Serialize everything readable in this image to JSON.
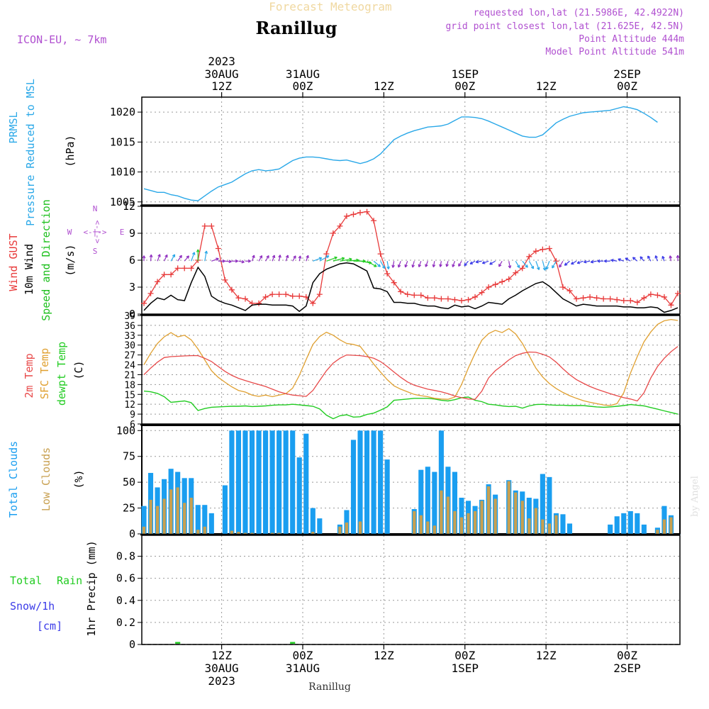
{
  "header": {
    "supertitle": "Forecast Meteogram",
    "location": "Ranillug",
    "model": "ICON-EU, ~ 7km",
    "requested": "requested lon,lat (21.5986E, 42.4922N)",
    "gridpoint": "grid point closest lon,lat (21.625E, 42.5N)",
    "point_alt": "Point Altitude 444m",
    "model_alt": "Model Point Altitude 541m",
    "footer": "Ranillug",
    "credit": "by Angel"
  },
  "colors": {
    "pressure": "#2aa8e8",
    "gust": "#e83a3a",
    "wind": "#000000",
    "wind_label": "#1ec01e",
    "temp": "#e84a4a",
    "sfc": "#e0a030",
    "dewpt": "#22cc22",
    "total_cloud": "#1a9ef0",
    "low_cloud": "#c8a050",
    "precip_rain": "#22cc22",
    "precip_snow": "#3a3ae8",
    "compass": "#b050d0"
  },
  "time_axis": {
    "top_ticks": [
      {
        "line1": "2023",
        "line2": "30AUG",
        "line3": "12Z"
      },
      {
        "line1": "",
        "line2": "31AUG",
        "line3": "00Z"
      },
      {
        "line1": "",
        "line2": "",
        "line3": "12Z"
      },
      {
        "line1": "",
        "line2": "1SEP",
        "line3": "00Z"
      },
      {
        "line1": "",
        "line2": "",
        "line3": "12Z"
      },
      {
        "line1": "",
        "line2": "2SEP",
        "line3": "00Z"
      }
    ],
    "bottom_ticks": [
      {
        "line1": "12Z",
        "line2": "30AUG",
        "line3": "2023"
      },
      {
        "line1": "00Z",
        "line2": "31AUG",
        "line3": ""
      },
      {
        "line1": "12Z",
        "line2": "",
        "line3": ""
      },
      {
        "line1": "00Z",
        "line2": "1SEP",
        "line3": ""
      },
      {
        "line1": "12Z",
        "line2": "",
        "line3": ""
      },
      {
        "line1": "00Z",
        "line2": "2SEP",
        "line3": ""
      }
    ]
  },
  "panel_labels": {
    "pressure": {
      "a": "PRMSL",
      "b": "Pressure Reduced to MSL",
      "unit": "(hPa)"
    },
    "wind": {
      "a": "Wind GUST",
      "b": "10m Wind",
      "c": "Speed and Direction",
      "unit": "(m/s)"
    },
    "compass": {
      "n": "N",
      "s": "S",
      "w": "W",
      "e": "E",
      "ns": "<-|->",
      "we": "<-|->"
    },
    "temp": {
      "a": "2m Temp",
      "b": "SFC Temp",
      "c": "dewpt Temp",
      "unit": "(C)"
    },
    "cloud": {
      "a": "Total Clouds",
      "b": "Low Clouds",
      "unit": "(%)"
    },
    "precip": {
      "a": "Total",
      "b": "Rain",
      "c": "Snow/1h",
      "d": "[cm]",
      "unit": "1hr Precip (mm)"
    }
  },
  "chart_data": [
    {
      "type": "line",
      "id": "pressure",
      "ylabel": "(hPa)",
      "ylim": [
        1004.5,
        1022.5
      ],
      "yticks": [
        1005,
        1010,
        1015,
        1020
      ],
      "grid": true,
      "x_start": "2023-08-30 00Z",
      "x_step_hours": 1,
      "series": [
        {
          "name": "PRMSL",
          "values": [
            1007.2,
            1006.9,
            1006.6,
            1006.6,
            1006.2,
            1006.0,
            1005.6,
            1005.3,
            1005.2,
            1006.0,
            1006.8,
            1007.5,
            1007.9,
            1008.3,
            1009.0,
            1009.7,
            1010.2,
            1010.4,
            1010.2,
            1010.3,
            1010.5,
            1011.2,
            1011.9,
            1012.3,
            1012.5,
            1012.5,
            1012.4,
            1012.2,
            1012.0,
            1011.9,
            1012.0,
            1011.7,
            1011.4,
            1011.7,
            1012.2,
            1013.0,
            1014.2,
            1015.4,
            1016.0,
            1016.5,
            1016.9,
            1017.2,
            1017.5,
            1017.6,
            1017.7,
            1018.0,
            1018.6,
            1019.2,
            1019.2,
            1019.1,
            1018.9,
            1018.5,
            1018.0,
            1017.5,
            1017.0,
            1016.5,
            1016.0,
            1015.8,
            1015.8,
            1016.2,
            1017.2,
            1018.2,
            1018.8,
            1019.3,
            1019.6,
            1019.9,
            1020.0,
            1020.1,
            1020.2,
            1020.3,
            1020.6,
            1020.9,
            1020.7,
            1020.4,
            1019.8,
            1019.1,
            1018.3
          ]
        }
      ]
    },
    {
      "type": "line",
      "id": "wind",
      "ylabel": "(m/s)",
      "ylim": [
        0,
        12
      ],
      "yticks": [
        0,
        3,
        6,
        9,
        12
      ],
      "grid": true,
      "x_start": "2023-08-30 00Z",
      "x_step_hours": 1,
      "series": [
        {
          "name": "Wind GUST",
          "values": [
            1.2,
            2.3,
            3.6,
            4.4,
            4.4,
            5.1,
            5.1,
            5.1,
            6.0,
            9.8,
            9.8,
            7.3,
            3.8,
            2.7,
            1.8,
            1.7,
            1.2,
            1.2,
            1.9,
            2.2,
            2.2,
            2.2,
            2.0,
            2.0,
            1.9,
            1.2,
            2.2,
            6.7,
            9.0,
            9.8,
            10.9,
            11.1,
            11.3,
            11.4,
            10.4,
            6.7,
            4.5,
            3.5,
            2.5,
            2.2,
            2.1,
            2.1,
            1.8,
            1.8,
            1.7,
            1.7,
            1.6,
            1.5,
            1.6,
            1.9,
            2.4,
            3.0,
            3.3,
            3.6,
            3.9,
            4.6,
            5.1,
            6.4,
            7.0,
            7.2,
            7.3,
            5.9,
            3.0,
            2.6,
            1.7,
            1.8,
            1.9,
            1.8,
            1.7,
            1.7,
            1.6,
            1.5,
            1.5,
            1.3,
            1.8,
            2.2,
            2.1,
            1.9,
            1.0,
            2.3
          ]
        },
        {
          "name": "10m Wind",
          "values": [
            0.4,
            1.2,
            1.8,
            1.6,
            2.1,
            1.6,
            1.5,
            3.5,
            5.2,
            4.2,
            2.0,
            1.5,
            1.2,
            1.0,
            0.7,
            0.4,
            1.0,
            1.1,
            1.1,
            1.0,
            1.0,
            1.0,
            0.9,
            0.3,
            0.9,
            3.5,
            4.5,
            5.0,
            5.3,
            5.6,
            5.7,
            5.6,
            5.2,
            4.8,
            2.9,
            2.8,
            2.5,
            1.3,
            1.3,
            1.2,
            1.2,
            1.0,
            0.9,
            0.9,
            0.7,
            0.6,
            1.0,
            0.8,
            0.9,
            0.6,
            0.9,
            1.3,
            1.2,
            1.1,
            1.7,
            2.1,
            2.6,
            3.0,
            3.4,
            3.6,
            3.1,
            2.4,
            1.7,
            1.3,
            0.9,
            1.1,
            1.0,
            0.9,
            0.9,
            0.9,
            0.9,
            0.8,
            0.8,
            0.7,
            0.7,
            0.8,
            0.7,
            0.2,
            0.4,
            0.7
          ]
        }
      ]
    },
    {
      "type": "line",
      "id": "temperature",
      "ylabel": "(C)",
      "ylim": [
        6,
        39
      ],
      "yticks": [
        6,
        9,
        12,
        15,
        18,
        21,
        24,
        27,
        30,
        33,
        36,
        39
      ],
      "grid": true,
      "x_start": "2023-08-30 00Z",
      "x_step_hours": 1,
      "series": [
        {
          "name": "2m Temp",
          "values": [
            21.0,
            23.0,
            24.8,
            26.2,
            26.5,
            26.6,
            26.7,
            26.8,
            26.8,
            26.0,
            25.0,
            23.5,
            22.0,
            20.8,
            19.9,
            19.2,
            18.6,
            18.0,
            17.4,
            16.6,
            15.8,
            15.2,
            14.8,
            14.6,
            14.4,
            16.2,
            19.2,
            22.2,
            24.5,
            26.0,
            27.0,
            26.9,
            26.8,
            26.5,
            26.0,
            25.0,
            23.5,
            21.8,
            20.2,
            18.8,
            17.8,
            17.2,
            16.6,
            16.2,
            15.8,
            15.2,
            14.5,
            14.0,
            13.6,
            13.5,
            16.0,
            20.0,
            22.2,
            23.8,
            25.5,
            26.8,
            27.5,
            27.9,
            27.8,
            27.2,
            26.4,
            24.8,
            22.8,
            21.0,
            19.5,
            18.4,
            17.4,
            16.6,
            15.9,
            15.2,
            14.6,
            14.0,
            13.6,
            13.0,
            15.5,
            20.0,
            23.5,
            26.0,
            28.0,
            29.6
          ]
        },
        {
          "name": "SFC Temp",
          "values": [
            24.0,
            27.5,
            30.5,
            32.5,
            33.8,
            32.5,
            33.0,
            31.6,
            28.8,
            25.5,
            22.2,
            20.2,
            18.7,
            17.3,
            16.2,
            15.7,
            14.8,
            14.4,
            14.8,
            14.3,
            14.8,
            15.2,
            16.9,
            20.8,
            25.6,
            30.2,
            32.6,
            33.9,
            33.0,
            31.6,
            30.5,
            30.2,
            29.6,
            27.0,
            24.2,
            21.8,
            19.5,
            17.6,
            16.6,
            15.8,
            15.0,
            14.6,
            14.3,
            13.8,
            13.6,
            13.5,
            14.2,
            18.0,
            23.0,
            27.5,
            31.5,
            33.5,
            34.5,
            33.8,
            35.0,
            33.4,
            30.5,
            26.8,
            23.0,
            20.3,
            18.3,
            16.8,
            15.6,
            14.6,
            13.8,
            13.1,
            12.6,
            12.2,
            11.8,
            11.6,
            12.2,
            15.5,
            21.5,
            26.5,
            31.0,
            34.0,
            36.3,
            37.4,
            37.8,
            37.5
          ]
        },
        {
          "name": "dewpt Temp",
          "values": [
            16.0,
            15.8,
            15.3,
            14.3,
            12.6,
            12.8,
            13.0,
            12.5,
            10.1,
            10.7,
            11.1,
            11.2,
            11.3,
            11.4,
            11.4,
            11.5,
            11.3,
            11.4,
            11.5,
            11.7,
            11.8,
            11.8,
            12.0,
            11.8,
            11.6,
            11.4,
            10.6,
            8.7,
            7.6,
            8.5,
            8.8,
            8.1,
            8.2,
            8.9,
            9.3,
            10.2,
            11.2,
            13.2,
            13.4,
            13.6,
            13.8,
            13.8,
            13.8,
            13.6,
            13.2,
            13.0,
            13.4,
            14.0,
            14.2,
            13.2,
            12.8,
            12.0,
            11.8,
            11.5,
            11.3,
            11.4,
            10.8,
            11.5,
            11.9,
            12.0,
            11.8,
            11.7,
            11.7,
            11.6,
            11.6,
            11.6,
            11.4,
            11.2,
            11.1,
            11.2,
            11.4,
            11.6,
            11.9,
            11.7,
            11.5,
            11.0,
            10.5,
            10.0,
            9.5,
            9.0
          ]
        }
      ]
    },
    {
      "type": "bar",
      "id": "clouds",
      "ylabel": "(%)",
      "ylim": [
        0,
        105
      ],
      "yticks": [
        0,
        25,
        50,
        75,
        100
      ],
      "grid": true,
      "x_start": "2023-08-30 00Z",
      "x_step_hours": 1,
      "series": [
        {
          "name": "Total Clouds",
          "values": [
            27,
            59,
            45,
            53,
            63,
            60,
            54,
            54,
            28,
            28,
            20,
            0,
            47,
            100,
            100,
            100,
            100,
            100,
            100,
            100,
            100,
            100,
            100,
            74,
            97,
            25,
            15,
            0,
            0,
            9,
            23,
            91,
            100,
            100,
            100,
            100,
            72,
            0,
            0,
            0,
            24,
            62,
            65,
            60,
            100,
            65,
            60,
            35,
            32,
            27,
            33,
            48,
            38,
            0,
            52,
            42,
            41,
            35,
            34,
            58,
            55,
            20,
            19,
            10,
            0,
            0,
            0,
            0,
            0,
            9,
            17,
            20,
            22,
            20,
            9,
            0,
            6,
            27,
            18,
            0
          ]
        },
        {
          "name": "Low Clouds",
          "values": [
            7,
            33,
            27,
            34,
            43,
            45,
            30,
            35,
            4,
            7,
            0,
            0,
            0,
            3,
            2,
            1,
            1,
            0,
            0,
            1,
            1,
            0,
            0,
            0,
            0,
            2,
            0,
            0,
            0,
            7,
            11,
            0,
            12,
            0,
            0,
            0,
            0,
            0,
            0,
            0,
            22,
            18,
            12,
            8,
            42,
            36,
            22,
            16,
            20,
            22,
            32,
            46,
            34,
            0,
            51,
            40,
            32,
            15,
            25,
            14,
            10,
            18,
            0,
            0,
            0,
            0,
            0,
            0,
            0,
            0,
            0,
            0,
            0,
            0,
            0,
            0,
            4,
            14,
            16,
            0
          ]
        }
      ]
    },
    {
      "type": "line",
      "id": "precip",
      "ylabel": "1hr Precip (mm)",
      "ylim": [
        0,
        0.99
      ],
      "yticks": [
        0,
        0.2,
        0.4,
        0.6,
        0.8
      ],
      "grid": true,
      "x_start": "2023-08-30 00Z",
      "x_step_hours": 1,
      "series": [
        {
          "name": "Total Rain",
          "values": [
            0,
            0,
            0,
            0,
            0,
            0.01,
            0,
            0,
            0,
            0,
            0,
            0,
            0,
            0,
            0,
            0,
            0,
            0,
            0,
            0,
            0,
            0,
            0.01,
            0,
            0,
            0,
            0,
            0,
            0,
            0,
            0,
            0,
            0,
            0,
            0,
            0,
            0,
            0,
            0,
            0,
            0,
            0,
            0,
            0,
            0,
            0,
            0,
            0,
            0,
            0,
            0,
            0,
            0,
            0,
            0,
            0,
            0,
            0,
            0,
            0,
            0,
            0,
            0,
            0,
            0,
            0,
            0,
            0,
            0,
            0,
            0,
            0,
            0,
            0,
            0,
            0,
            0,
            0,
            0,
            0
          ]
        },
        {
          "name": "Snow/1h",
          "values": [
            0,
            0,
            0,
            0,
            0,
            0,
            0,
            0,
            0,
            0,
            0,
            0,
            0,
            0,
            0,
            0,
            0,
            0,
            0,
            0,
            0,
            0,
            0,
            0,
            0,
            0,
            0,
            0,
            0,
            0,
            0,
            0,
            0,
            0,
            0,
            0,
            0,
            0,
            0,
            0,
            0,
            0,
            0,
            0,
            0,
            0,
            0,
            0,
            0,
            0,
            0,
            0,
            0,
            0,
            0,
            0,
            0,
            0,
            0,
            0,
            0,
            0,
            0,
            0,
            0,
            0,
            0,
            0,
            0,
            0,
            0,
            0,
            0,
            0,
            0,
            0,
            0,
            0,
            0,
            0
          ]
        }
      ]
    }
  ],
  "wind_barbs": {
    "directions_deg": [
      180,
      185,
      200,
      205,
      210,
      215,
      220,
      200,
      180,
      190,
      250,
      270,
      275,
      270,
      280,
      270,
      200,
      210,
      210,
      200,
      190,
      200,
      210,
      190,
      200,
      250,
      240,
      250,
      255,
      260,
      265,
      270,
      280,
      300,
      310,
      330,
      350,
      10,
      20,
      20,
      15,
      20,
      20,
      10,
      10,
      15,
      20,
      30,
      40,
      60,
      80,
      70,
      60,
      30,
      350,
      330,
      320,
      330,
      340,
      345,
      20,
      30,
      30,
      50,
      60,
      70,
      80,
      80,
      90,
      90,
      100,
      110,
      120,
      130,
      140,
      150,
      160,
      160,
      170,
      180
    ]
  }
}
